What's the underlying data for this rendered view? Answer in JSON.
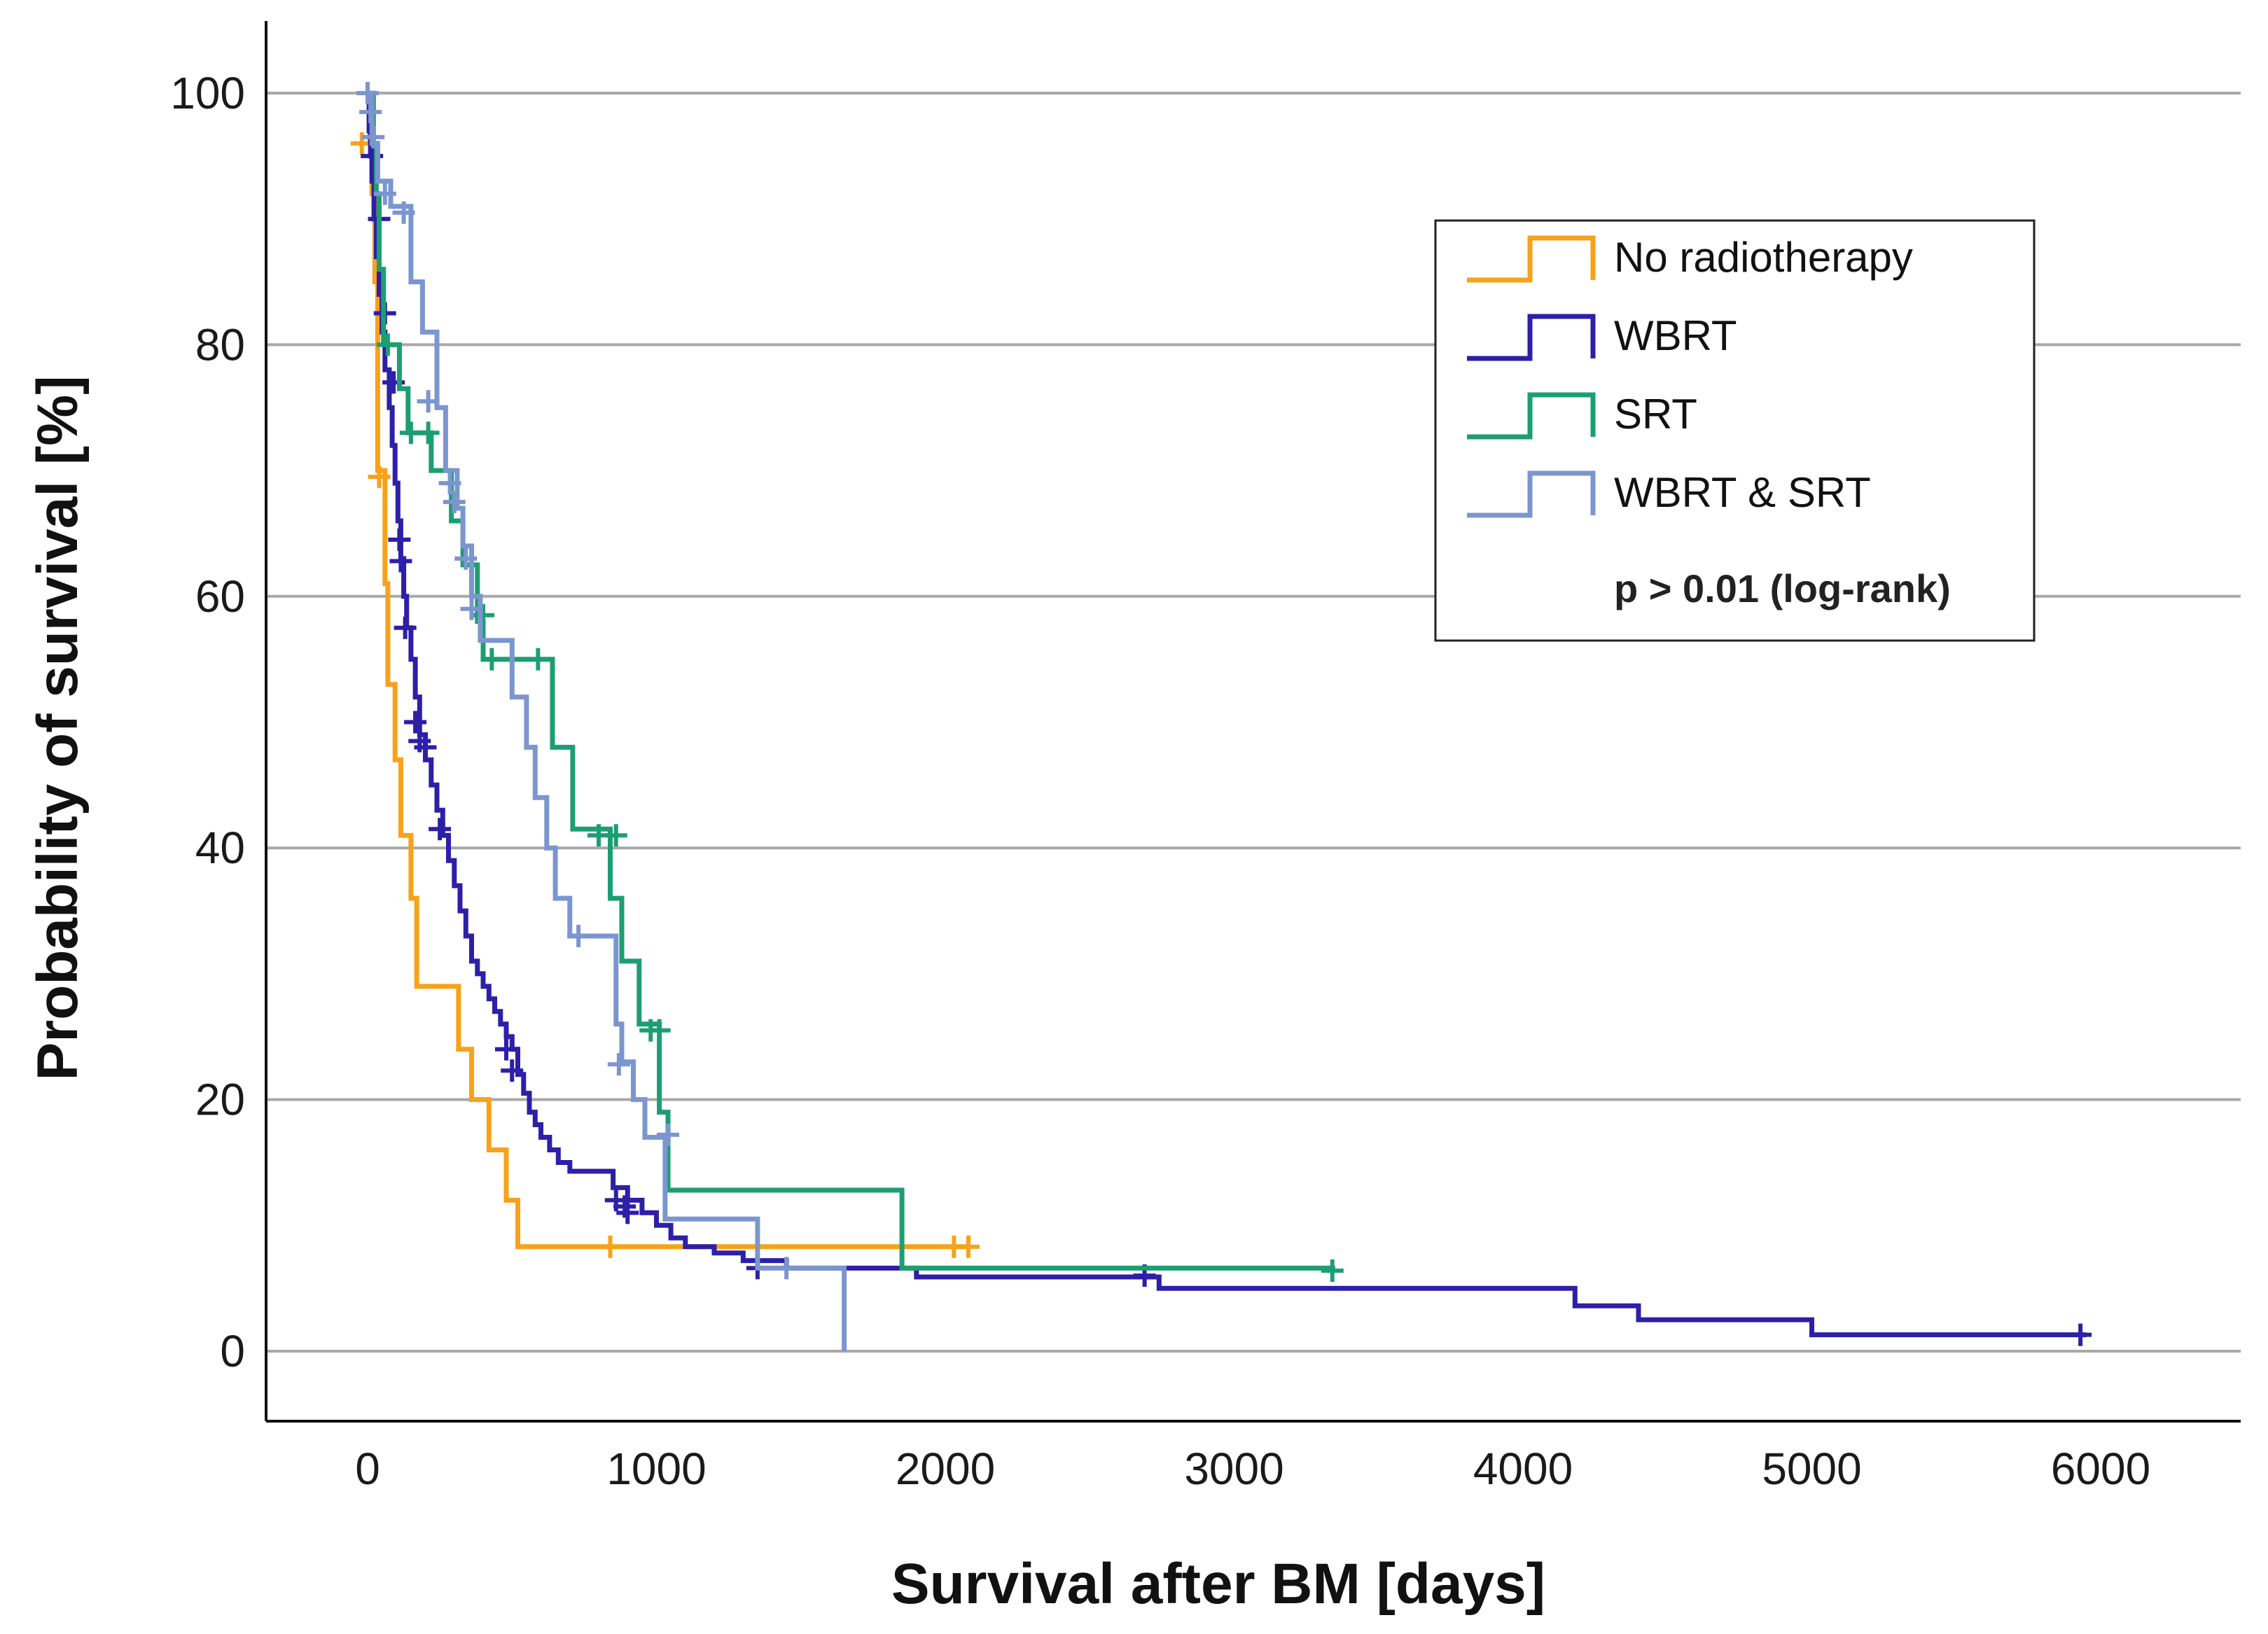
{
  "chart_data": {
    "type": "line",
    "subtype": "kaplan-meier",
    "title": "",
    "xlabel": "Survival after BM [days]",
    "ylabel": "Probability of survival [%]",
    "xlim": [
      -350,
      6500
    ],
    "ylim": [
      -5.5,
      105.5
    ],
    "x_ticks": [
      0,
      1000,
      2000,
      3000,
      4000,
      5000,
      6000
    ],
    "x_tick_labels": [
      "0",
      "1000",
      "2000",
      "3000",
      "4000",
      "5000",
      "6000"
    ],
    "y_ticks": [
      0,
      20,
      40,
      60,
      80,
      100
    ],
    "y_tick_labels": [
      "0",
      "20",
      "40",
      "60",
      "80",
      "100"
    ],
    "grid": "horizontal",
    "legend_position": "top-right",
    "annotation": "p > 0.01 (log-rank)",
    "series": [
      {
        "name": "No radiotherapy",
        "color": "#f7a21b",
        "steps": [
          [
            0,
            100
          ],
          [
            8,
            96
          ],
          [
            15,
            92
          ],
          [
            25,
            85
          ],
          [
            35,
            70
          ],
          [
            60,
            61
          ],
          [
            70,
            53
          ],
          [
            95,
            47
          ],
          [
            115,
            41
          ],
          [
            150,
            36
          ],
          [
            170,
            29
          ],
          [
            315,
            24
          ],
          [
            360,
            20
          ],
          [
            420,
            16
          ],
          [
            480,
            12
          ],
          [
            520,
            8.3
          ],
          [
            2080,
            8.3
          ]
        ],
        "censored": [
          [
            -20,
            96
          ],
          [
            40,
            69.5
          ],
          [
            840,
            8.3
          ],
          [
            2030,
            8.3
          ],
          [
            2080,
            8.3
          ]
        ]
      },
      {
        "name": "WBRT",
        "color": "#2d1fa8",
        "steps": [
          [
            0,
            100
          ],
          [
            5,
            97
          ],
          [
            10,
            95
          ],
          [
            15,
            93
          ],
          [
            22,
            90
          ],
          [
            30,
            87
          ],
          [
            40,
            84
          ],
          [
            50,
            81
          ],
          [
            60,
            78
          ],
          [
            75,
            75
          ],
          [
            85,
            72
          ],
          [
            95,
            69
          ],
          [
            105,
            66
          ],
          [
            115,
            63
          ],
          [
            125,
            60
          ],
          [
            135,
            57.5
          ],
          [
            150,
            55
          ],
          [
            165,
            52
          ],
          [
            180,
            49
          ],
          [
            200,
            47
          ],
          [
            220,
            45
          ],
          [
            240,
            43
          ],
          [
            260,
            41
          ],
          [
            280,
            39
          ],
          [
            300,
            37
          ],
          [
            320,
            35
          ],
          [
            340,
            33
          ],
          [
            360,
            31
          ],
          [
            380,
            30
          ],
          [
            400,
            29
          ],
          [
            420,
            28
          ],
          [
            440,
            27
          ],
          [
            460,
            26
          ],
          [
            480,
            25
          ],
          [
            500,
            24
          ],
          [
            520,
            22
          ],
          [
            540,
            20.5
          ],
          [
            560,
            19
          ],
          [
            580,
            18
          ],
          [
            600,
            17
          ],
          [
            630,
            16
          ],
          [
            660,
            15
          ],
          [
            700,
            14.3
          ],
          [
            850,
            13
          ],
          [
            900,
            12
          ],
          [
            950,
            11
          ],
          [
            1000,
            10
          ],
          [
            1050,
            9
          ],
          [
            1100,
            8.3
          ],
          [
            1200,
            7.8
          ],
          [
            1300,
            7.2
          ],
          [
            1450,
            6.6
          ],
          [
            1900,
            5.9
          ],
          [
            2740,
            5
          ],
          [
            4180,
            3.6
          ],
          [
            4400,
            2.5
          ],
          [
            5000,
            1.3
          ],
          [
            5950,
            1.3
          ]
        ],
        "censored": [
          [
            15,
            95
          ],
          [
            40,
            90
          ],
          [
            60,
            82.5
          ],
          [
            90,
            77
          ],
          [
            110,
            64.5
          ],
          [
            115,
            62.8
          ],
          [
            130,
            57.5
          ],
          [
            165,
            50
          ],
          [
            180,
            48.5
          ],
          [
            200,
            48
          ],
          [
            250,
            41.5
          ],
          [
            480,
            24
          ],
          [
            500,
            22.3
          ],
          [
            860,
            12
          ],
          [
            890,
            11.5
          ],
          [
            900,
            11
          ],
          [
            1350,
            6.6
          ],
          [
            2690,
            6
          ],
          [
            5930,
            1.3
          ]
        ]
      },
      {
        "name": "SRT",
        "color": "#1d9e72",
        "steps": [
          [
            0,
            100
          ],
          [
            20,
            96
          ],
          [
            30,
            92
          ],
          [
            40,
            86
          ],
          [
            55,
            80
          ],
          [
            110,
            76.5
          ],
          [
            140,
            73
          ],
          [
            220,
            70
          ],
          [
            290,
            66
          ],
          [
            330,
            62.5
          ],
          [
            380,
            58
          ],
          [
            400,
            55
          ],
          [
            640,
            48
          ],
          [
            710,
            41.5
          ],
          [
            840,
            36
          ],
          [
            880,
            31
          ],
          [
            940,
            26
          ],
          [
            1010,
            19
          ],
          [
            1040,
            12.8
          ],
          [
            1850,
            6.6
          ],
          [
            3350,
            6.6
          ]
        ],
        "censored": [
          [
            70,
            80
          ],
          [
            150,
            73
          ],
          [
            210,
            73
          ],
          [
            400,
            58.5
          ],
          [
            430,
            55
          ],
          [
            590,
            55
          ],
          [
            800,
            41
          ],
          [
            860,
            41
          ],
          [
            980,
            25.5
          ],
          [
            1010,
            25.5
          ],
          [
            3340,
            6.4
          ]
        ]
      },
      {
        "name": "WBRT & SRT",
        "color": "#7b96cf",
        "steps": [
          [
            0,
            100
          ],
          [
            15,
            96
          ],
          [
            35,
            93
          ],
          [
            80,
            91
          ],
          [
            150,
            85
          ],
          [
            190,
            81
          ],
          [
            240,
            75
          ],
          [
            270,
            70
          ],
          [
            310,
            67
          ],
          [
            330,
            64
          ],
          [
            360,
            60
          ],
          [
            390,
            56.5
          ],
          [
            500,
            52
          ],
          [
            550,
            48
          ],
          [
            580,
            44
          ],
          [
            620,
            40
          ],
          [
            650,
            36
          ],
          [
            700,
            33
          ],
          [
            860,
            26
          ],
          [
            880,
            23
          ],
          [
            920,
            20
          ],
          [
            960,
            17
          ],
          [
            1030,
            10.5
          ],
          [
            1350,
            6.6
          ],
          [
            1650,
            0
          ]
        ],
        "censored": [
          [
            0,
            100
          ],
          [
            10,
            98.5
          ],
          [
            20,
            96.5
          ],
          [
            60,
            92
          ],
          [
            125,
            90.5
          ],
          [
            210,
            75.5
          ],
          [
            285,
            69
          ],
          [
            300,
            67.5
          ],
          [
            340,
            63
          ],
          [
            360,
            59
          ],
          [
            730,
            33
          ],
          [
            870,
            22.8
          ],
          [
            1040,
            17.2
          ],
          [
            1450,
            6.6
          ]
        ]
      }
    ]
  }
}
